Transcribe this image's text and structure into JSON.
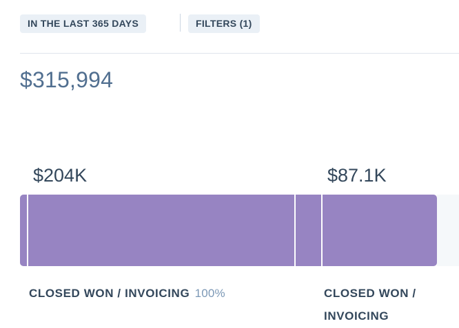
{
  "filters": {
    "date_range_label": "IN THE LAST 365 DAYS",
    "filters_label": "FILTERS (1)"
  },
  "summary": {
    "total_value": "$315,994"
  },
  "funnel": {
    "bar_color": "#9784c2",
    "stages": [
      {
        "value_label": "$204K",
        "name": "CLOSED WON / INVOICING",
        "percent": "100%"
      },
      {
        "value_label": "$87.1K",
        "name": "CLOSED WON / INVOICING"
      }
    ]
  }
}
